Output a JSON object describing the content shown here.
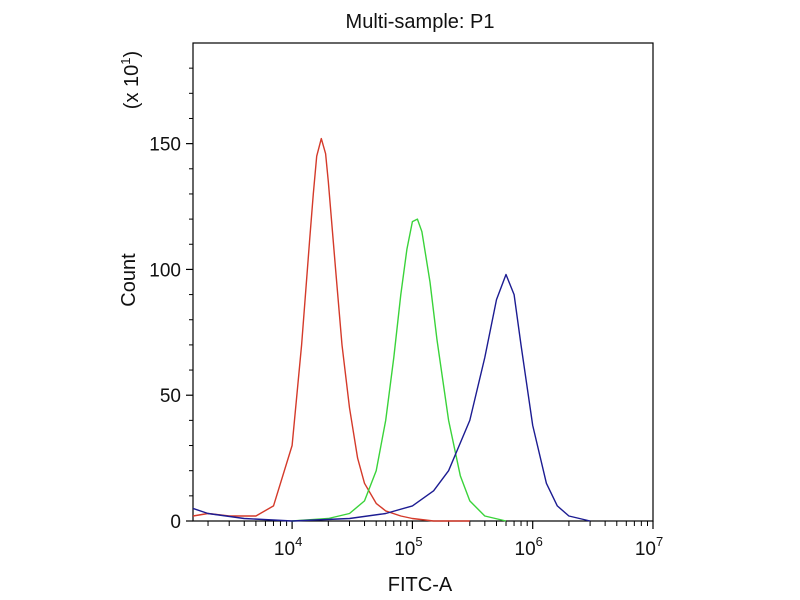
{
  "chart_data": {
    "type": "line",
    "title": "Multi-sample: P1",
    "xlabel": "FITC-A",
    "ylabel": "Count",
    "y_multiplier_label": "(x 10",
    "y_multiplier_exponent": "1",
    "y_multiplier_close": ")",
    "x_scale": "log",
    "xlim": [
      1500,
      10000000
    ],
    "ylim": [
      0,
      190
    ],
    "grid": false,
    "legend": "none",
    "x_ticks": [
      {
        "value": 10000,
        "base": "10",
        "exp": "4"
      },
      {
        "value": 100000,
        "base": "10",
        "exp": "5"
      },
      {
        "value": 1000000,
        "base": "10",
        "exp": "6"
      },
      {
        "value": 10000000,
        "base": "10",
        "exp": "7"
      }
    ],
    "y_ticks": [
      {
        "value": 0,
        "label": "0"
      },
      {
        "value": 50,
        "label": "50"
      },
      {
        "value": 100,
        "label": "100"
      },
      {
        "value": 150,
        "label": "150"
      }
    ],
    "series": [
      {
        "color": "#d43a2a",
        "x": [
          1500,
          2000,
          3000,
          5000,
          7000,
          10000,
          12000,
          14000,
          15000,
          16000,
          17500,
          19000,
          20000,
          23000,
          26000,
          30000,
          35000,
          40000,
          50000,
          60000,
          80000,
          100000,
          150000,
          300000
        ],
        "y": [
          2,
          3,
          2,
          2,
          6,
          30,
          70,
          112,
          130,
          145,
          152,
          146,
          135,
          100,
          70,
          45,
          25,
          15,
          7,
          4,
          2,
          1,
          0,
          0
        ]
      },
      {
        "color": "#3ad33a",
        "x": [
          10000,
          20000,
          30000,
          40000,
          50000,
          60000,
          70000,
          80000,
          90000,
          100000,
          110000,
          120000,
          140000,
          160000,
          200000,
          250000,
          300000,
          400000,
          600000
        ],
        "y": [
          0,
          1,
          3,
          8,
          20,
          40,
          65,
          90,
          108,
          119,
          120,
          115,
          95,
          72,
          40,
          18,
          8,
          2,
          0
        ]
      },
      {
        "color": "#1c1c92",
        "x": [
          1500,
          2000,
          4000,
          10000,
          30000,
          60000,
          100000,
          150000,
          200000,
          300000,
          400000,
          500000,
          600000,
          700000,
          800000,
          1000000,
          1300000,
          1600000,
          2000000,
          3000000
        ],
        "y": [
          5,
          3,
          1,
          0,
          1,
          3,
          6,
          12,
          20,
          40,
          65,
          88,
          98,
          90,
          70,
          38,
          15,
          6,
          2,
          0
        ]
      }
    ]
  }
}
